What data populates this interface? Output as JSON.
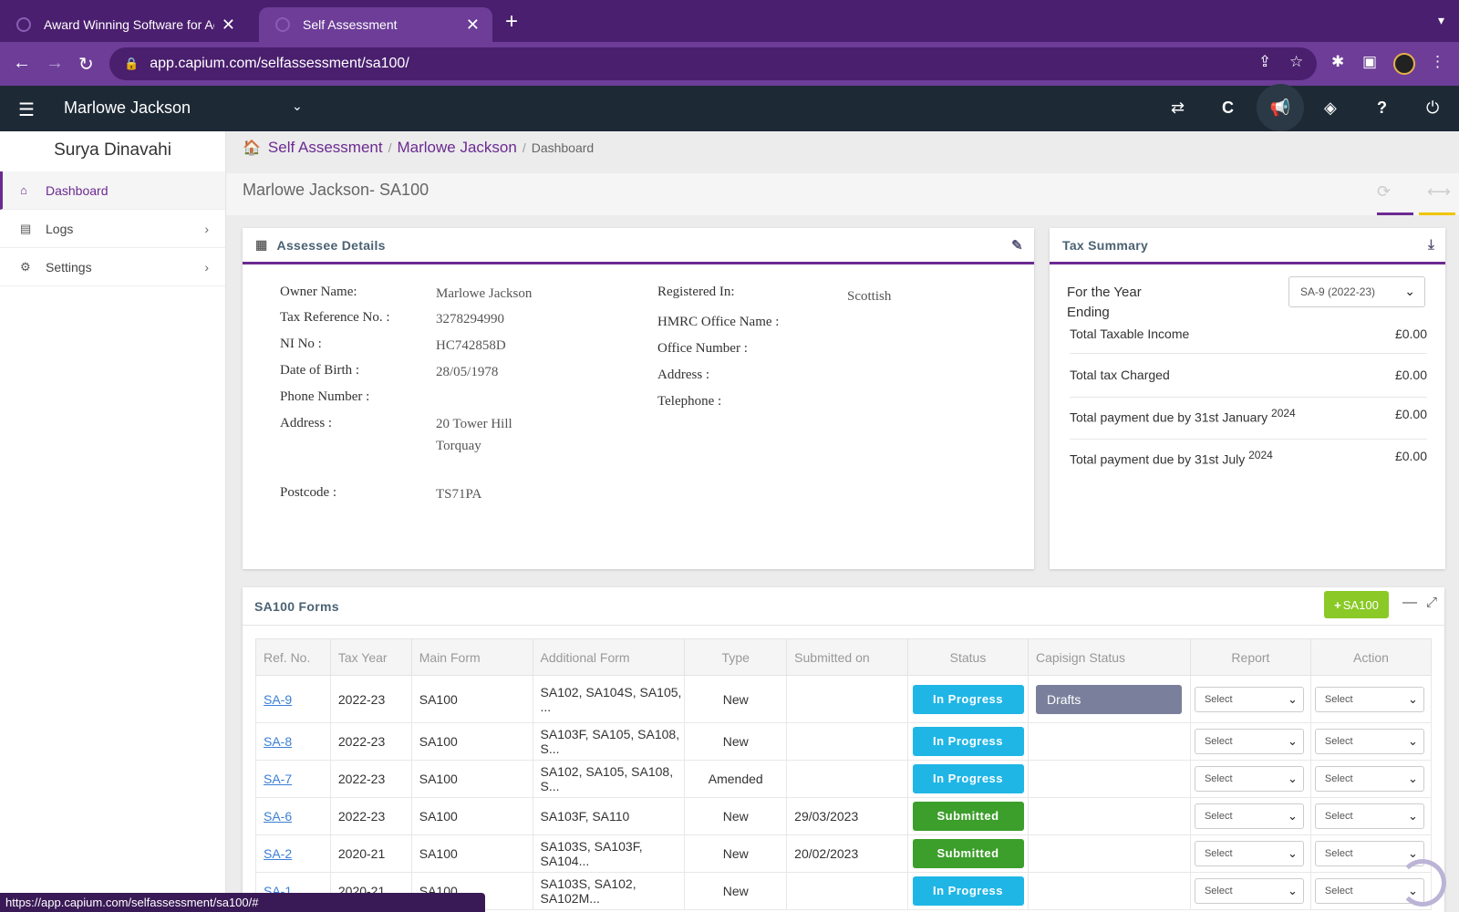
{
  "browser": {
    "tabs": [
      {
        "title": "Award Winning Software for Ac"
      },
      {
        "title": "Self Assessment"
      }
    ],
    "url": "app.capium.com/selfassessment/sa100/",
    "status_url": "https://app.capium.com/selfassessment/sa100/#"
  },
  "header": {
    "client_name": "Marlowe Jackson"
  },
  "sidebar": {
    "user": "Surya Dinavahi",
    "items": [
      {
        "label": "Dashboard"
      },
      {
        "label": "Logs"
      },
      {
        "label": "Settings"
      }
    ]
  },
  "breadcrumb": {
    "items": [
      "Self Assessment",
      "Marlowe Jackson",
      "Dashboard"
    ]
  },
  "page": {
    "title": "Marlowe Jackson- SA100"
  },
  "assessee": {
    "title": "Assessee Details",
    "left": [
      {
        "label": "Owner Name:",
        "value": "Marlowe Jackson"
      },
      {
        "label": "Tax Reference No. :",
        "value": "3278294990"
      },
      {
        "label": "NI No :",
        "value": "HC742858D"
      },
      {
        "label": "Date of Birth :",
        "value": "28/05/1978"
      },
      {
        "label": "Phone Number :",
        "value": ""
      },
      {
        "label": "Address :",
        "value": "20 Tower Hill",
        "value2": "Torquay"
      },
      {
        "label": "Postcode :",
        "value": "TS71PA"
      }
    ],
    "right": [
      {
        "label": "Registered In:",
        "value": "Scottish"
      },
      {
        "label": "HMRC Office Name :"
      },
      {
        "label": "Office Number :"
      },
      {
        "label": "Address :"
      },
      {
        "label": "Telephone :"
      }
    ]
  },
  "tax_summary": {
    "title": "Tax Summary",
    "year_label_1": "For the Year",
    "year_label_2": "Ending",
    "year_value": "SA-9 (2022-23)",
    "rows": [
      {
        "label": "Total Taxable Income",
        "value": "£0.00"
      },
      {
        "label": "Total tax Charged",
        "value": "£0.00"
      },
      {
        "label": "Total payment due by 31st January",
        "sup": "2024",
        "value": "£0.00"
      },
      {
        "label": "Total payment due by 31st July",
        "sup": "2024",
        "value": "£0.00"
      }
    ]
  },
  "forms": {
    "title": "SA100 Forms",
    "add_label": "SA100",
    "columns": [
      "Ref. No.",
      "Tax Year",
      "Main Form",
      "Additional Form",
      "Type",
      "Submitted on",
      "Status",
      "Capisign Status",
      "Report",
      "Action"
    ],
    "select_label": "Select",
    "rows": [
      {
        "ref": "SA-9",
        "year": "2022-23",
        "main": "SA100",
        "additional": "SA102, SA104S, SA105, ...",
        "type": "New",
        "submitted": "",
        "status": "In Progress",
        "capisign": "Drafts"
      },
      {
        "ref": "SA-8",
        "year": "2022-23",
        "main": "SA100",
        "additional": "SA103F, SA105, SA108, S...",
        "type": "New",
        "submitted": "",
        "status": "In Progress",
        "capisign": ""
      },
      {
        "ref": "SA-7",
        "year": "2022-23",
        "main": "SA100",
        "additional": "SA102, SA105, SA108, S...",
        "type": "Amended",
        "submitted": "",
        "status": "In Progress",
        "capisign": ""
      },
      {
        "ref": "SA-6",
        "year": "2022-23",
        "main": "SA100",
        "additional": "SA103F, SA110",
        "type": "New",
        "submitted": "29/03/2023",
        "status": "Submitted",
        "capisign": ""
      },
      {
        "ref": "SA-2",
        "year": "2020-21",
        "main": "SA100",
        "additional": "SA103S, SA103F, SA104...",
        "type": "New",
        "submitted": "20/02/2023",
        "status": "Submitted",
        "capisign": ""
      },
      {
        "ref": "SA-1",
        "year": "2020-21",
        "main": "SA100",
        "additional": "SA103S, SA102, SA102M...",
        "type": "New",
        "submitted": "",
        "status": "In Progress",
        "capisign": ""
      }
    ]
  },
  "colors": {
    "brand_purple": "#6b2a91",
    "in_progress": "#1fb6e6",
    "submitted": "#3c9e2b",
    "add_button": "#8ac926"
  }
}
